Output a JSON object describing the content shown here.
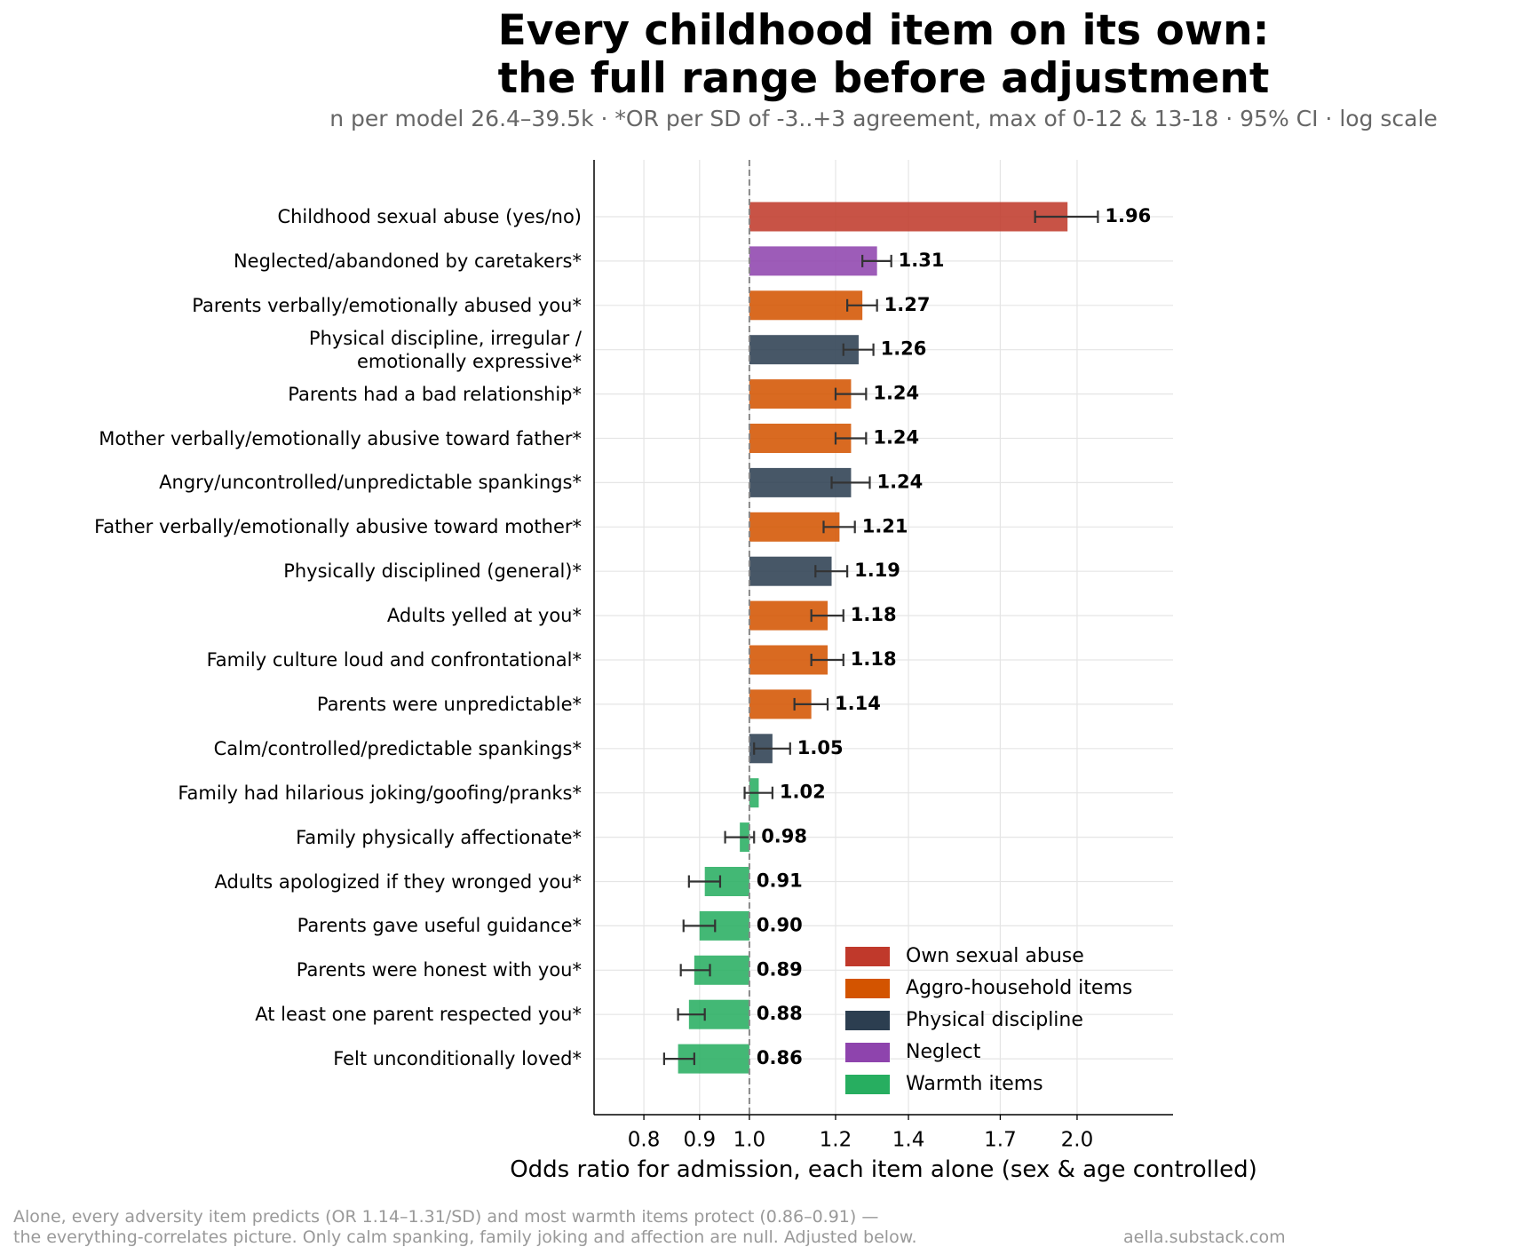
{
  "chart_data": {
    "type": "bar",
    "orientation": "horizontal",
    "title": "Every childhood item on its own:\nthe full range before adjustment",
    "subtitle": "n per model 26.4–39.5k · *OR per SD of -3..+3 agreement, max of 0-12 & 13-18 · 95% CI · log scale",
    "x_label": "Odds ratio for admission, each item alone (sex & age controlled)",
    "footnote": "Alone, every adversity item predicts (OR 1.14–1.31/SD) and most warmth items protect (0.86–0.91) —\nthe everything-correlates picture. Only calm spanking, family joking and affection are null. Adjusted below.",
    "credit": "aella.substack.com",
    "categories": [
      "Childhood sexual abuse (yes/no)",
      "Neglected/abandoned by caretakers*",
      "Parents verbally/emotionally abused you*",
      "Physical discipline, irregular /\nemotionally expressive*",
      "Parents had a bad relationship*",
      "Mother verbally/emotionally abusive toward father*",
      "Angry/uncontrolled/unpredictable spankings*",
      "Father verbally/emotionally abusive toward mother*",
      "Physically disciplined (general)*",
      "Adults yelled at you*",
      "Family culture loud and confrontational*",
      "Parents were unpredictable*",
      "Calm/controlled/predictable spankings*",
      "Family had hilarious joking/goofing/pranks*",
      "Family physically affectionate*",
      "Adults apologized if they wronged you*",
      "Parents gave useful guidance*",
      "Parents were honest with you*",
      "At least one parent respected you*",
      "Felt unconditionally loved*"
    ],
    "values": [
      1.96,
      1.31,
      1.27,
      1.26,
      1.24,
      1.24,
      1.24,
      1.21,
      1.19,
      1.18,
      1.18,
      1.14,
      1.05,
      1.02,
      0.98,
      0.91,
      0.9,
      0.89,
      0.88,
      0.86
    ],
    "value_labels": [
      "1.96",
      "1.31",
      "1.27",
      "1.26",
      "1.24",
      "1.24",
      "1.24",
      "1.21",
      "1.19",
      "1.18",
      "1.18",
      "1.14",
      "1.05",
      "1.02",
      "0.98",
      "0.91",
      "0.90",
      "0.89",
      "0.88",
      "0.86"
    ],
    "ci_low": [
      1.83,
      1.27,
      1.23,
      1.22,
      1.2,
      1.2,
      1.19,
      1.17,
      1.15,
      1.14,
      1.14,
      1.1,
      1.01,
      0.99,
      0.95,
      0.88,
      0.87,
      0.865,
      0.86,
      0.835
    ],
    "ci_high": [
      2.09,
      1.35,
      1.31,
      1.3,
      1.28,
      1.28,
      1.29,
      1.25,
      1.23,
      1.22,
      1.22,
      1.18,
      1.09,
      1.05,
      1.01,
      0.94,
      0.93,
      0.92,
      0.91,
      0.89
    ],
    "groups": [
      0,
      3,
      1,
      2,
      1,
      1,
      2,
      1,
      2,
      1,
      1,
      1,
      2,
      4,
      4,
      4,
      4,
      4,
      4,
      4
    ],
    "legend": [
      {
        "name": "Own sexual abuse",
        "color": "#c0392b"
      },
      {
        "name": "Aggro-household items",
        "color": "#d35400"
      },
      {
        "name": "Physical discipline",
        "color": "#2c3e50"
      },
      {
        "name": "Neglect",
        "color": "#8e44ad"
      },
      {
        "name": "Warmth items",
        "color": "#27ae60"
      }
    ],
    "legend_position": "lower right",
    "reference_x": 1.0,
    "log_x": true,
    "grid": true,
    "xlim": [
      0.72,
      2.45
    ],
    "xticks": [
      0.8,
      0.9,
      {
        "value": 1,
        "label": "1.0"
      },
      1.2,
      1.4,
      1.7,
      {
        "value": 2,
        "label": "2.0"
      }
    ]
  }
}
